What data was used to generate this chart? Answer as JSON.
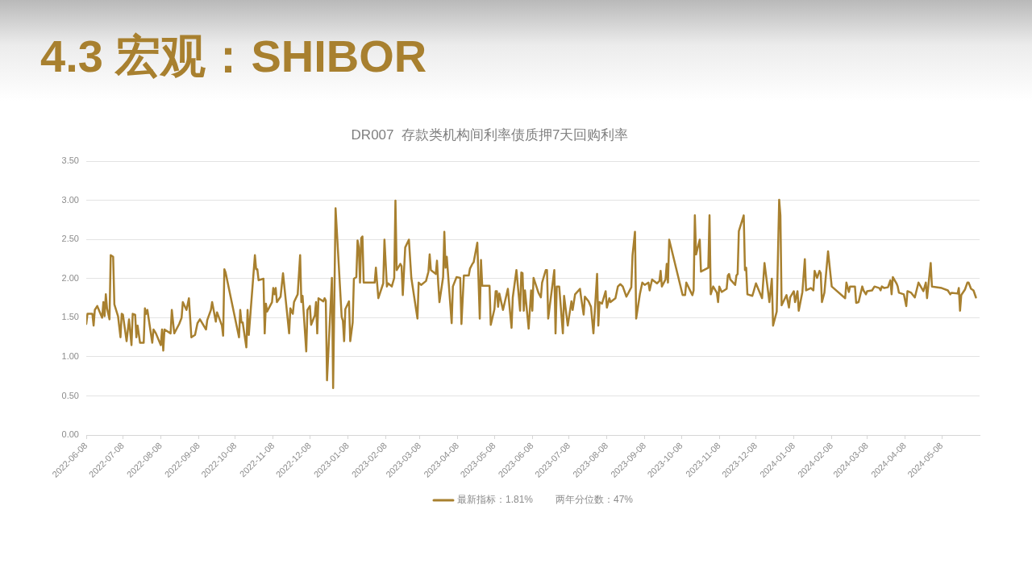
{
  "chart_data": {
    "type": "line",
    "title": "4.3 宏观：SHIBOR",
    "subtitle": "DR007  存款类机构间利率债质押7天回购利率",
    "x": [
      "2022-06-08",
      "2022-06-09",
      "2022-06-13",
      "2022-06-14",
      "2022-06-15",
      "2022-06-17",
      "2022-06-21",
      "2022-06-22",
      "2022-06-23",
      "2022-06-24",
      "2022-06-25",
      "2022-06-27",
      "2022-06-28",
      "2022-06-30",
      "2022-07-01",
      "2022-07-04",
      "2022-07-06",
      "2022-07-07",
      "2022-07-08",
      "2022-07-11",
      "2022-07-13",
      "2022-07-15",
      "2022-07-16",
      "2022-07-18",
      "2022-07-19",
      "2022-07-20",
      "2022-07-22",
      "2022-07-25",
      "2022-07-26",
      "2022-07-27",
      "2022-07-28",
      "2022-08-01",
      "2022-08-02",
      "2022-08-04",
      "2022-08-08",
      "2022-08-09",
      "2022-08-10",
      "2022-08-11",
      "2022-08-16",
      "2022-08-17",
      "2022-08-19",
      "2022-08-23",
      "2022-08-25",
      "2022-08-26",
      "2022-08-29",
      "2022-08-31",
      "2022-09-02",
      "2022-09-05",
      "2022-09-07",
      "2022-09-09",
      "2022-09-14",
      "2022-09-15",
      "2022-09-18",
      "2022-09-19",
      "2022-09-22",
      "2022-09-23",
      "2022-09-27",
      "2022-09-28",
      "2022-09-29",
      "2022-09-30",
      "2022-10-11",
      "2022-10-12",
      "2022-10-13",
      "2022-10-14",
      "2022-10-17",
      "2022-10-18",
      "2022-10-19",
      "2022-10-24",
      "2022-10-25",
      "2022-10-26",
      "2022-10-27",
      "2022-10-31",
      "2022-11-01",
      "2022-11-02",
      "2022-11-03",
      "2022-11-07",
      "2022-11-08",
      "2022-11-09",
      "2022-11-10",
      "2022-11-11",
      "2022-11-14",
      "2022-11-16",
      "2022-11-21",
      "2022-11-22",
      "2022-11-24",
      "2022-11-25",
      "2022-11-28",
      "2022-11-30",
      "2022-12-01",
      "2022-12-02",
      "2022-12-05",
      "2022-12-06",
      "2022-12-08",
      "2022-12-09",
      "2022-12-12",
      "2022-12-13",
      "2022-12-14",
      "2022-12-15",
      "2022-12-19",
      "2022-12-20",
      "2022-12-21",
      "2022-12-22",
      "2022-12-26",
      "2022-12-27",
      "2022-12-29",
      "2023-01-03",
      "2023-01-04",
      "2023-01-05",
      "2023-01-06",
      "2023-01-09",
      "2023-01-10",
      "2023-01-12",
      "2023-01-13",
      "2023-01-15",
      "2023-01-16",
      "2023-01-17",
      "2023-01-18",
      "2023-01-19",
      "2023-01-20",
      "2023-01-21",
      "2023-01-30",
      "2023-01-31",
      "2023-02-02",
      "2023-02-06",
      "2023-02-07",
      "2023-02-09",
      "2023-02-10",
      "2023-02-13",
      "2023-02-15",
      "2023-02-16",
      "2023-02-17",
      "2023-02-20",
      "2023-02-21",
      "2023-02-22",
      "2023-02-24",
      "2023-02-27",
      "2023-03-01",
      "2023-03-06",
      "2023-03-07",
      "2023-03-09",
      "2023-03-13",
      "2023-03-15",
      "2023-03-16",
      "2023-03-17",
      "2023-03-21",
      "2023-03-22",
      "2023-03-23",
      "2023-03-24",
      "2023-03-27",
      "2023-03-28",
      "2023-03-29",
      "2023-03-30",
      "2023-04-03",
      "2023-04-04",
      "2023-04-07",
      "2023-04-10",
      "2023-04-11",
      "2023-04-13",
      "2023-04-17",
      "2023-04-18",
      "2023-04-20",
      "2023-04-21",
      "2023-04-24",
      "2023-04-26",
      "2023-04-27",
      "2023-04-28",
      "2023-05-04",
      "2023-05-05",
      "2023-05-08",
      "2023-05-09",
      "2023-05-10",
      "2023-05-11",
      "2023-05-12",
      "2023-05-15",
      "2023-05-19",
      "2023-05-22",
      "2023-05-23",
      "2023-05-26",
      "2023-05-29",
      "2023-05-30",
      "2023-05-31",
      "2023-06-01",
      "2023-06-02",
      "2023-06-05",
      "2023-06-07",
      "2023-06-08",
      "2023-06-09",
      "2023-06-13",
      "2023-06-15",
      "2023-06-16",
      "2023-06-19",
      "2023-06-20",
      "2023-06-21",
      "2023-06-26",
      "2023-06-27",
      "2023-06-28",
      "2023-06-30",
      "2023-07-03",
      "2023-07-04",
      "2023-07-07",
      "2023-07-10",
      "2023-07-11",
      "2023-07-13",
      "2023-07-17",
      "2023-07-18",
      "2023-07-20",
      "2023-07-21",
      "2023-07-24",
      "2023-07-26",
      "2023-07-28",
      "2023-07-31",
      "2023-08-01",
      "2023-08-02",
      "2023-08-04",
      "2023-08-07",
      "2023-08-08",
      "2023-08-10",
      "2023-08-11",
      "2023-08-15",
      "2023-08-17",
      "2023-08-19",
      "2023-08-21",
      "2023-08-24",
      "2023-08-28",
      "2023-08-29",
      "2023-08-31",
      "2023-09-01",
      "2023-09-04",
      "2023-09-06",
      "2023-09-08",
      "2023-09-11",
      "2023-09-12",
      "2023-09-14",
      "2023-09-18",
      "2023-09-20",
      "2023-09-21",
      "2023-09-22",
      "2023-09-25",
      "2023-09-26",
      "2023-09-27",
      "2023-09-28",
      "2023-10-09",
      "2023-10-11",
      "2023-10-12",
      "2023-10-16",
      "2023-10-17",
      "2023-10-18",
      "2023-10-19",
      "2023-10-20",
      "2023-10-23",
      "2023-10-24",
      "2023-10-30",
      "2023-10-31",
      "2023-11-01",
      "2023-11-03",
      "2023-11-06",
      "2023-11-07",
      "2023-11-08",
      "2023-11-10",
      "2023-11-14",
      "2023-11-15",
      "2023-11-16",
      "2023-11-17",
      "2023-11-21",
      "2023-11-22",
      "2023-11-23",
      "2023-11-24",
      "2023-11-28",
      "2023-11-29",
      "2023-11-30",
      "2023-12-01",
      "2023-12-05",
      "2023-12-06",
      "2023-12-08",
      "2023-12-13",
      "2023-12-15",
      "2023-12-19",
      "2023-12-21",
      "2023-12-22",
      "2023-12-25",
      "2023-12-27",
      "2023-12-28",
      "2023-12-29",
      "2024-01-02",
      "2024-01-04",
      "2024-01-05",
      "2024-01-08",
      "2024-01-09",
      "2024-01-11",
      "2024-01-12",
      "2024-01-15",
      "2024-01-17",
      "2024-01-18",
      "2024-01-22",
      "2024-01-24",
      "2024-01-25",
      "2024-01-27",
      "2024-01-29",
      "2024-01-30",
      "2024-01-31",
      "2024-02-02",
      "2024-02-05",
      "2024-02-08",
      "2024-02-19",
      "2024-02-20",
      "2024-02-22",
      "2024-02-23",
      "2024-02-27",
      "2024-02-28",
      "2024-03-01",
      "2024-03-04",
      "2024-03-05",
      "2024-03-07",
      "2024-03-08",
      "2024-03-12",
      "2024-03-14",
      "2024-03-18",
      "2024-03-19",
      "2024-03-20",
      "2024-03-22",
      "2024-03-25",
      "2024-03-27",
      "2024-03-28",
      "2024-03-29",
      "2024-04-01",
      "2024-04-02",
      "2024-04-03",
      "2024-04-07",
      "2024-04-09",
      "2024-04-10",
      "2024-04-13",
      "2024-04-16",
      "2024-04-19",
      "2024-04-23",
      "2024-04-25",
      "2024-04-26",
      "2024-04-29",
      "2024-04-30",
      "2024-05-08",
      "2024-05-13",
      "2024-05-15",
      "2024-05-16",
      "2024-05-21",
      "2024-05-22",
      "2024-05-23",
      "2024-05-24",
      "2024-05-27",
      "2024-05-29",
      "2024-05-30",
      "2024-06-01",
      "2024-06-03",
      "2024-06-05"
    ],
    "series": [
      {
        "name": "最新指标：1.81%",
        "color": "#a8802f",
        "values": [
          1.42,
          1.55,
          1.55,
          1.4,
          1.6,
          1.65,
          1.5,
          1.7,
          1.52,
          1.8,
          1.62,
          1.48,
          2.3,
          2.28,
          1.67,
          1.52,
          1.25,
          1.55,
          1.54,
          1.2,
          1.48,
          1.15,
          1.55,
          1.54,
          1.25,
          1.4,
          1.18,
          1.18,
          1.62,
          1.55,
          1.6,
          1.18,
          1.35,
          1.3,
          1.15,
          1.35,
          1.08,
          1.35,
          1.3,
          1.6,
          1.3,
          1.42,
          1.5,
          1.7,
          1.6,
          1.75,
          1.25,
          1.28,
          1.43,
          1.48,
          1.35,
          1.47,
          1.6,
          1.7,
          1.45,
          1.57,
          1.4,
          1.27,
          2.12,
          2.08,
          1.25,
          1.6,
          1.44,
          1.44,
          1.12,
          1.6,
          1.28,
          2.3,
          2.12,
          2.12,
          1.98,
          2.0,
          1.3,
          1.68,
          1.58,
          1.7,
          1.88,
          1.8,
          1.88,
          1.7,
          1.77,
          2.07,
          1.3,
          1.62,
          1.55,
          1.7,
          1.8,
          2.3,
          1.7,
          1.78,
          1.07,
          1.6,
          1.65,
          1.41,
          1.53,
          1.7,
          1.3,
          1.75,
          1.71,
          1.75,
          1.72,
          0.7,
          2.01,
          0.6,
          2.9,
          1.51,
          1.46,
          1.2,
          1.61,
          1.71,
          1.2,
          1.44,
          2.0,
          2.02,
          2.49,
          2.4,
          1.95,
          2.52,
          2.54,
          1.95,
          1.95,
          2.14,
          1.75,
          1.94,
          2.5,
          1.9,
          1.94,
          1.9,
          2.01,
          3.0,
          2.11,
          2.19,
          2.16,
          1.79,
          2.4,
          2.5,
          2.01,
          1.49,
          1.95,
          1.92,
          1.97,
          2.09,
          2.31,
          2.11,
          2.06,
          2.23,
          1.94,
          1.7,
          2.02,
          2.6,
          2.14,
          2.28,
          1.43,
          1.9,
          2.02,
          2.01,
          1.42,
          2.04,
          2.04,
          2.13,
          2.19,
          2.21,
          2.46,
          1.49,
          2.24,
          1.91,
          1.91,
          1.41,
          1.61,
          1.84,
          1.84,
          1.64,
          1.81,
          1.6,
          1.87,
          1.37,
          1.76,
          2.11,
          1.59,
          2.08,
          2.07,
          1.59,
          1.85,
          1.36,
          1.85,
          1.59,
          2.01,
          1.82,
          1.76,
          1.95,
          2.11,
          2.11,
          1.49,
          2.11,
          1.3,
          1.9,
          1.9,
          1.3,
          1.78,
          1.4,
          1.71,
          1.6,
          1.8,
          1.87,
          1.75,
          1.54,
          1.77,
          1.71,
          1.64,
          1.3,
          2.06,
          1.4,
          1.7,
          1.68,
          1.84,
          1.63,
          1.75,
          1.7,
          1.75,
          1.9,
          1.93,
          1.9,
          1.77,
          1.89,
          2.3,
          2.6,
          1.49,
          1.8,
          1.95,
          1.92,
          1.95,
          1.85,
          1.99,
          1.94,
          1.97,
          2.1,
          1.9,
          1.99,
          2.19,
          1.95,
          2.5,
          1.79,
          1.79,
          1.95,
          1.82,
          1.79,
          1.85,
          2.81,
          2.31,
          2.5,
          2.09,
          2.14,
          2.81,
          1.8,
          1.9,
          1.82,
          1.7,
          1.9,
          1.83,
          1.87,
          2.04,
          2.06,
          1.99,
          1.92,
          2.04,
          2.06,
          2.61,
          2.81,
          2.11,
          2.14,
          1.8,
          1.78,
          1.83,
          1.94,
          1.75,
          2.2,
          1.7,
          2.0,
          1.4,
          1.58,
          3.01,
          2.81,
          1.66,
          1.79,
          1.63,
          1.76,
          1.84,
          1.7,
          1.84,
          1.59,
          1.83,
          2.25,
          1.85,
          1.88,
          1.85,
          2.1,
          2.01,
          2.1,
          2.07,
          1.7,
          1.82,
          2.35,
          1.9,
          1.75,
          1.95,
          1.83,
          1.9,
          1.9,
          1.69,
          1.7,
          1.9,
          1.85,
          1.8,
          1.84,
          1.85,
          1.9,
          1.88,
          1.85,
          1.9,
          1.88,
          1.89,
          1.98,
          1.8,
          2.02,
          1.94,
          1.9,
          1.82,
          1.8,
          1.65,
          1.84,
          1.82,
          1.76,
          1.95,
          1.84,
          1.95,
          1.75,
          2.2,
          1.9,
          1.88,
          1.85,
          1.8,
          1.82,
          1.81,
          1.88,
          1.59,
          1.79,
          1.86,
          1.95,
          1.95,
          1.87,
          1.85,
          1.76
        ]
      }
    ],
    "xlim": [
      "2022-06-08",
      "2024-06-08"
    ],
    "xticks": [
      "2022-06-08",
      "2022-07-08",
      "2022-08-08",
      "2022-09-08",
      "2022-10-08",
      "2022-11-08",
      "2022-12-08",
      "2023-01-08",
      "2023-02-08",
      "2023-03-08",
      "2023-04-08",
      "2023-05-08",
      "2023-06-08",
      "2023-07-08",
      "2023-08-08",
      "2023-09-08",
      "2023-10-08",
      "2023-11-08",
      "2023-12-08",
      "2024-01-08",
      "2024-02-08",
      "2024-03-08",
      "2024-04-08",
      "2024-05-08"
    ],
    "ylim": [
      0,
      3.5
    ],
    "yticks": [
      {
        "value": 0,
        "label": "0.00"
      },
      {
        "value": 0.5,
        "label": "0.50"
      },
      {
        "value": 1,
        "label": "1.00"
      },
      {
        "value": 1.5,
        "label": "1.50"
      },
      {
        "value": 2,
        "label": "2.00"
      },
      {
        "value": 2.5,
        "label": "2.50"
      },
      {
        "value": 3,
        "label": "3.00"
      },
      {
        "value": 3.5,
        "label": "3.50"
      }
    ],
    "grid": "y",
    "legend": "bottom",
    "marker": "none",
    "annotations": [
      "两年分位数：47%"
    ]
  }
}
